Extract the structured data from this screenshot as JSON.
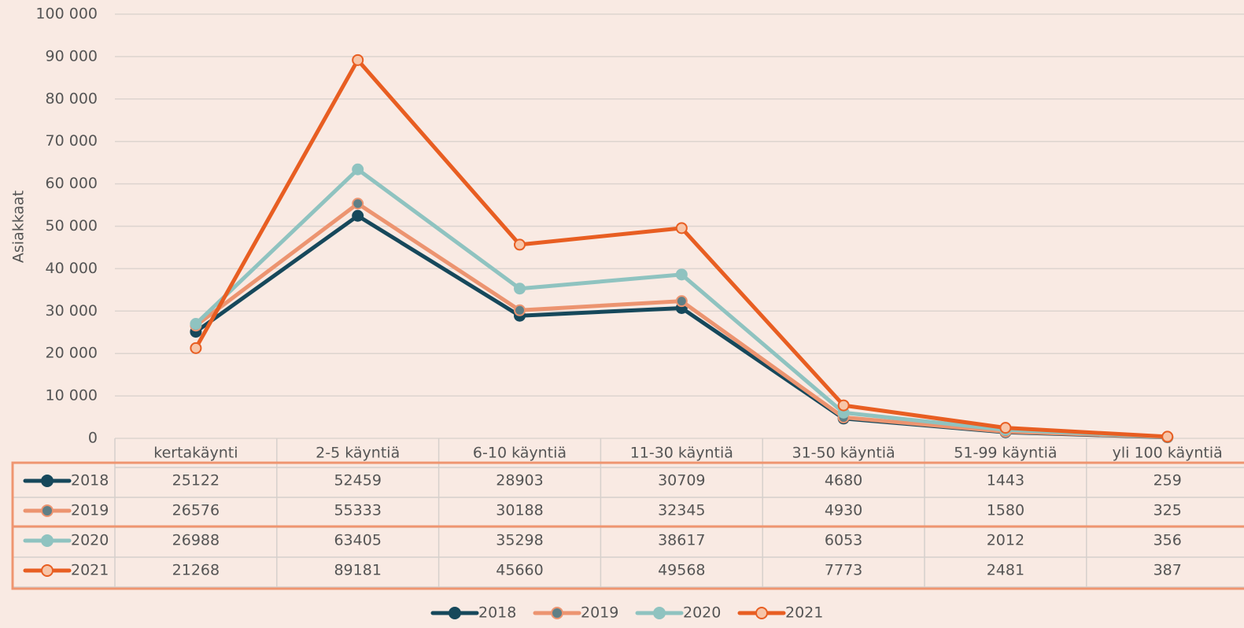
{
  "chart_data": {
    "type": "line",
    "y_label": "Asiakkaat",
    "categories": [
      "kertakäynti",
      "2-5 käyntiä",
      "6-10 käyntiä",
      "11-30 käyntiä",
      "31-50 käyntiä",
      "51-99 käyntiä",
      "yli 100 käyntiä"
    ],
    "series": [
      {
        "name": "2018",
        "color": "#16485b",
        "marker_color": "#16485b",
        "values": [
          25122,
          52459,
          28903,
          30709,
          4680,
          1443,
          259
        ]
      },
      {
        "name": "2019",
        "color": "#ec9470",
        "marker_color": "#5f7f86",
        "values": [
          26576,
          55333,
          30188,
          32345,
          4930,
          1580,
          325
        ]
      },
      {
        "name": "2020",
        "color": "#8fc3c0",
        "marker_color": "#8fc3c0",
        "values": [
          26988,
          63405,
          35298,
          38617,
          6053,
          2012,
          356
        ]
      },
      {
        "name": "2021",
        "color": "#e85e22",
        "marker_color": "#f7c5a8",
        "values": [
          21268,
          89181,
          45660,
          49568,
          7773,
          2481,
          387
        ]
      }
    ],
    "ylim": [
      0,
      100000
    ],
    "yticks": [
      0,
      {
        "value": 10000,
        "label": "10 000"
      },
      {
        "value": 20000,
        "label": "20 000"
      },
      {
        "value": 30000,
        "label": "30 000"
      },
      {
        "value": 40000,
        "label": "40 000"
      },
      {
        "value": 50000,
        "label": "50 000"
      },
      {
        "value": 60000,
        "label": "60 000"
      },
      {
        "value": 70000,
        "label": "70 000"
      },
      {
        "value": 80000,
        "label": "80 000"
      },
      {
        "value": 90000,
        "label": "90 000"
      },
      {
        "value": 100000,
        "label": "100 000"
      }
    ],
    "grid": true,
    "legend": "bottom",
    "data_table": true
  }
}
